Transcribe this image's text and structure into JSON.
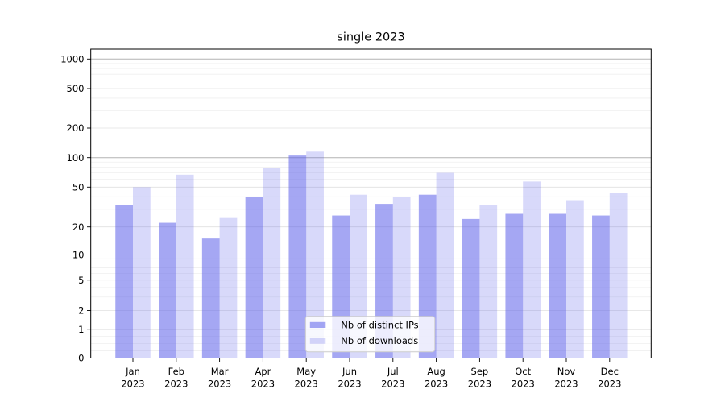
{
  "chart_data": {
    "type": "bar",
    "title": "single 2023",
    "categories": [
      "Jan 2023",
      "Feb 2023",
      "Mar 2023",
      "Apr 2023",
      "May 2023",
      "Jun 2023",
      "Jul 2023",
      "Aug 2023",
      "Sep 2023",
      "Oct 2023",
      "Nov 2023",
      "Dec 2023"
    ],
    "series": [
      {
        "name": "Nb of distinct IPs",
        "values": [
          33,
          22,
          15,
          40,
          105,
          26,
          34,
          42,
          24,
          27,
          27,
          26
        ],
        "color": "#a5a7f2"
      },
      {
        "name": "Nb of downloads",
        "values": [
          50,
          67,
          25,
          78,
          115,
          42,
          40,
          70,
          33,
          57,
          37,
          44
        ],
        "color": "#d9dbfa"
      }
    ],
    "xlabel": "",
    "ylabel": "",
    "yscale": "symlog",
    "ylim": [
      0,
      1270
    ],
    "y_tick_values": [
      0,
      1,
      2,
      5,
      10,
      20,
      50,
      100,
      200,
      500,
      1000
    ],
    "y_tick_labels": [
      "0",
      "1",
      "2",
      "5",
      "10",
      "20",
      "50",
      "100",
      "200",
      "500",
      "1000"
    ],
    "grid": "on",
    "legend_position": "lower center"
  },
  "colors": {
    "bar_base": "#5b5fe9",
    "bar_distinct_ips_effective": "#a5a7f2",
    "bar_downloads_effective": "#d9dbfa",
    "grid_major": "#b3b3b3",
    "grid_mid": "#e0e0e0",
    "grid_minor": "#efefef",
    "spine": "#000000",
    "background": "#ffffff",
    "legend_border": "#cccccc",
    "text": "#000000"
  }
}
